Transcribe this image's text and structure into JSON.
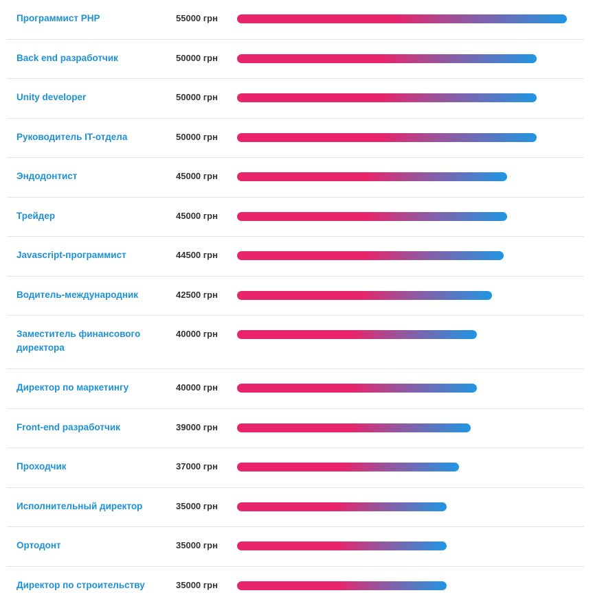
{
  "currency": "грн",
  "max_value": 55000,
  "items": [
    {
      "title": "Программист PHP",
      "salary": "55000 грн",
      "value": 55000
    },
    {
      "title": "Back end разработчик",
      "salary": "50000 грн",
      "value": 50000
    },
    {
      "title": "Unity developer",
      "salary": "50000 грн",
      "value": 50000
    },
    {
      "title": "Руководитель IT-отдела",
      "salary": "50000 грн",
      "value": 50000
    },
    {
      "title": "Эндодонтист",
      "salary": "45000 грн",
      "value": 45000
    },
    {
      "title": "Трейдер",
      "salary": "45000 грн",
      "value": 45000
    },
    {
      "title": "Javascript-программист",
      "salary": "44500 грн",
      "value": 44500
    },
    {
      "title": "Водитель-международник",
      "salary": "42500 грн",
      "value": 42500
    },
    {
      "title": "Заместитель финансового директора",
      "salary": "40000 грн",
      "value": 40000
    },
    {
      "title": "Директор по маркетингу",
      "salary": "40000 грн",
      "value": 40000
    },
    {
      "title": "Front-end разработчик",
      "salary": "39000 грн",
      "value": 39000
    },
    {
      "title": "Проходчик",
      "salary": "37000 грн",
      "value": 37000
    },
    {
      "title": "Исполнительный директор",
      "salary": "35000 грн",
      "value": 35000
    },
    {
      "title": "Ортодонт",
      "salary": "35000 грн",
      "value": 35000
    },
    {
      "title": "Директор по строительству",
      "salary": "35000 грн",
      "value": 35000
    }
  ],
  "colors": {
    "link": "#1e91d6",
    "bar_start": "#e8246a",
    "bar_end": "#2196e3",
    "divider": "#e4e4e4"
  }
}
